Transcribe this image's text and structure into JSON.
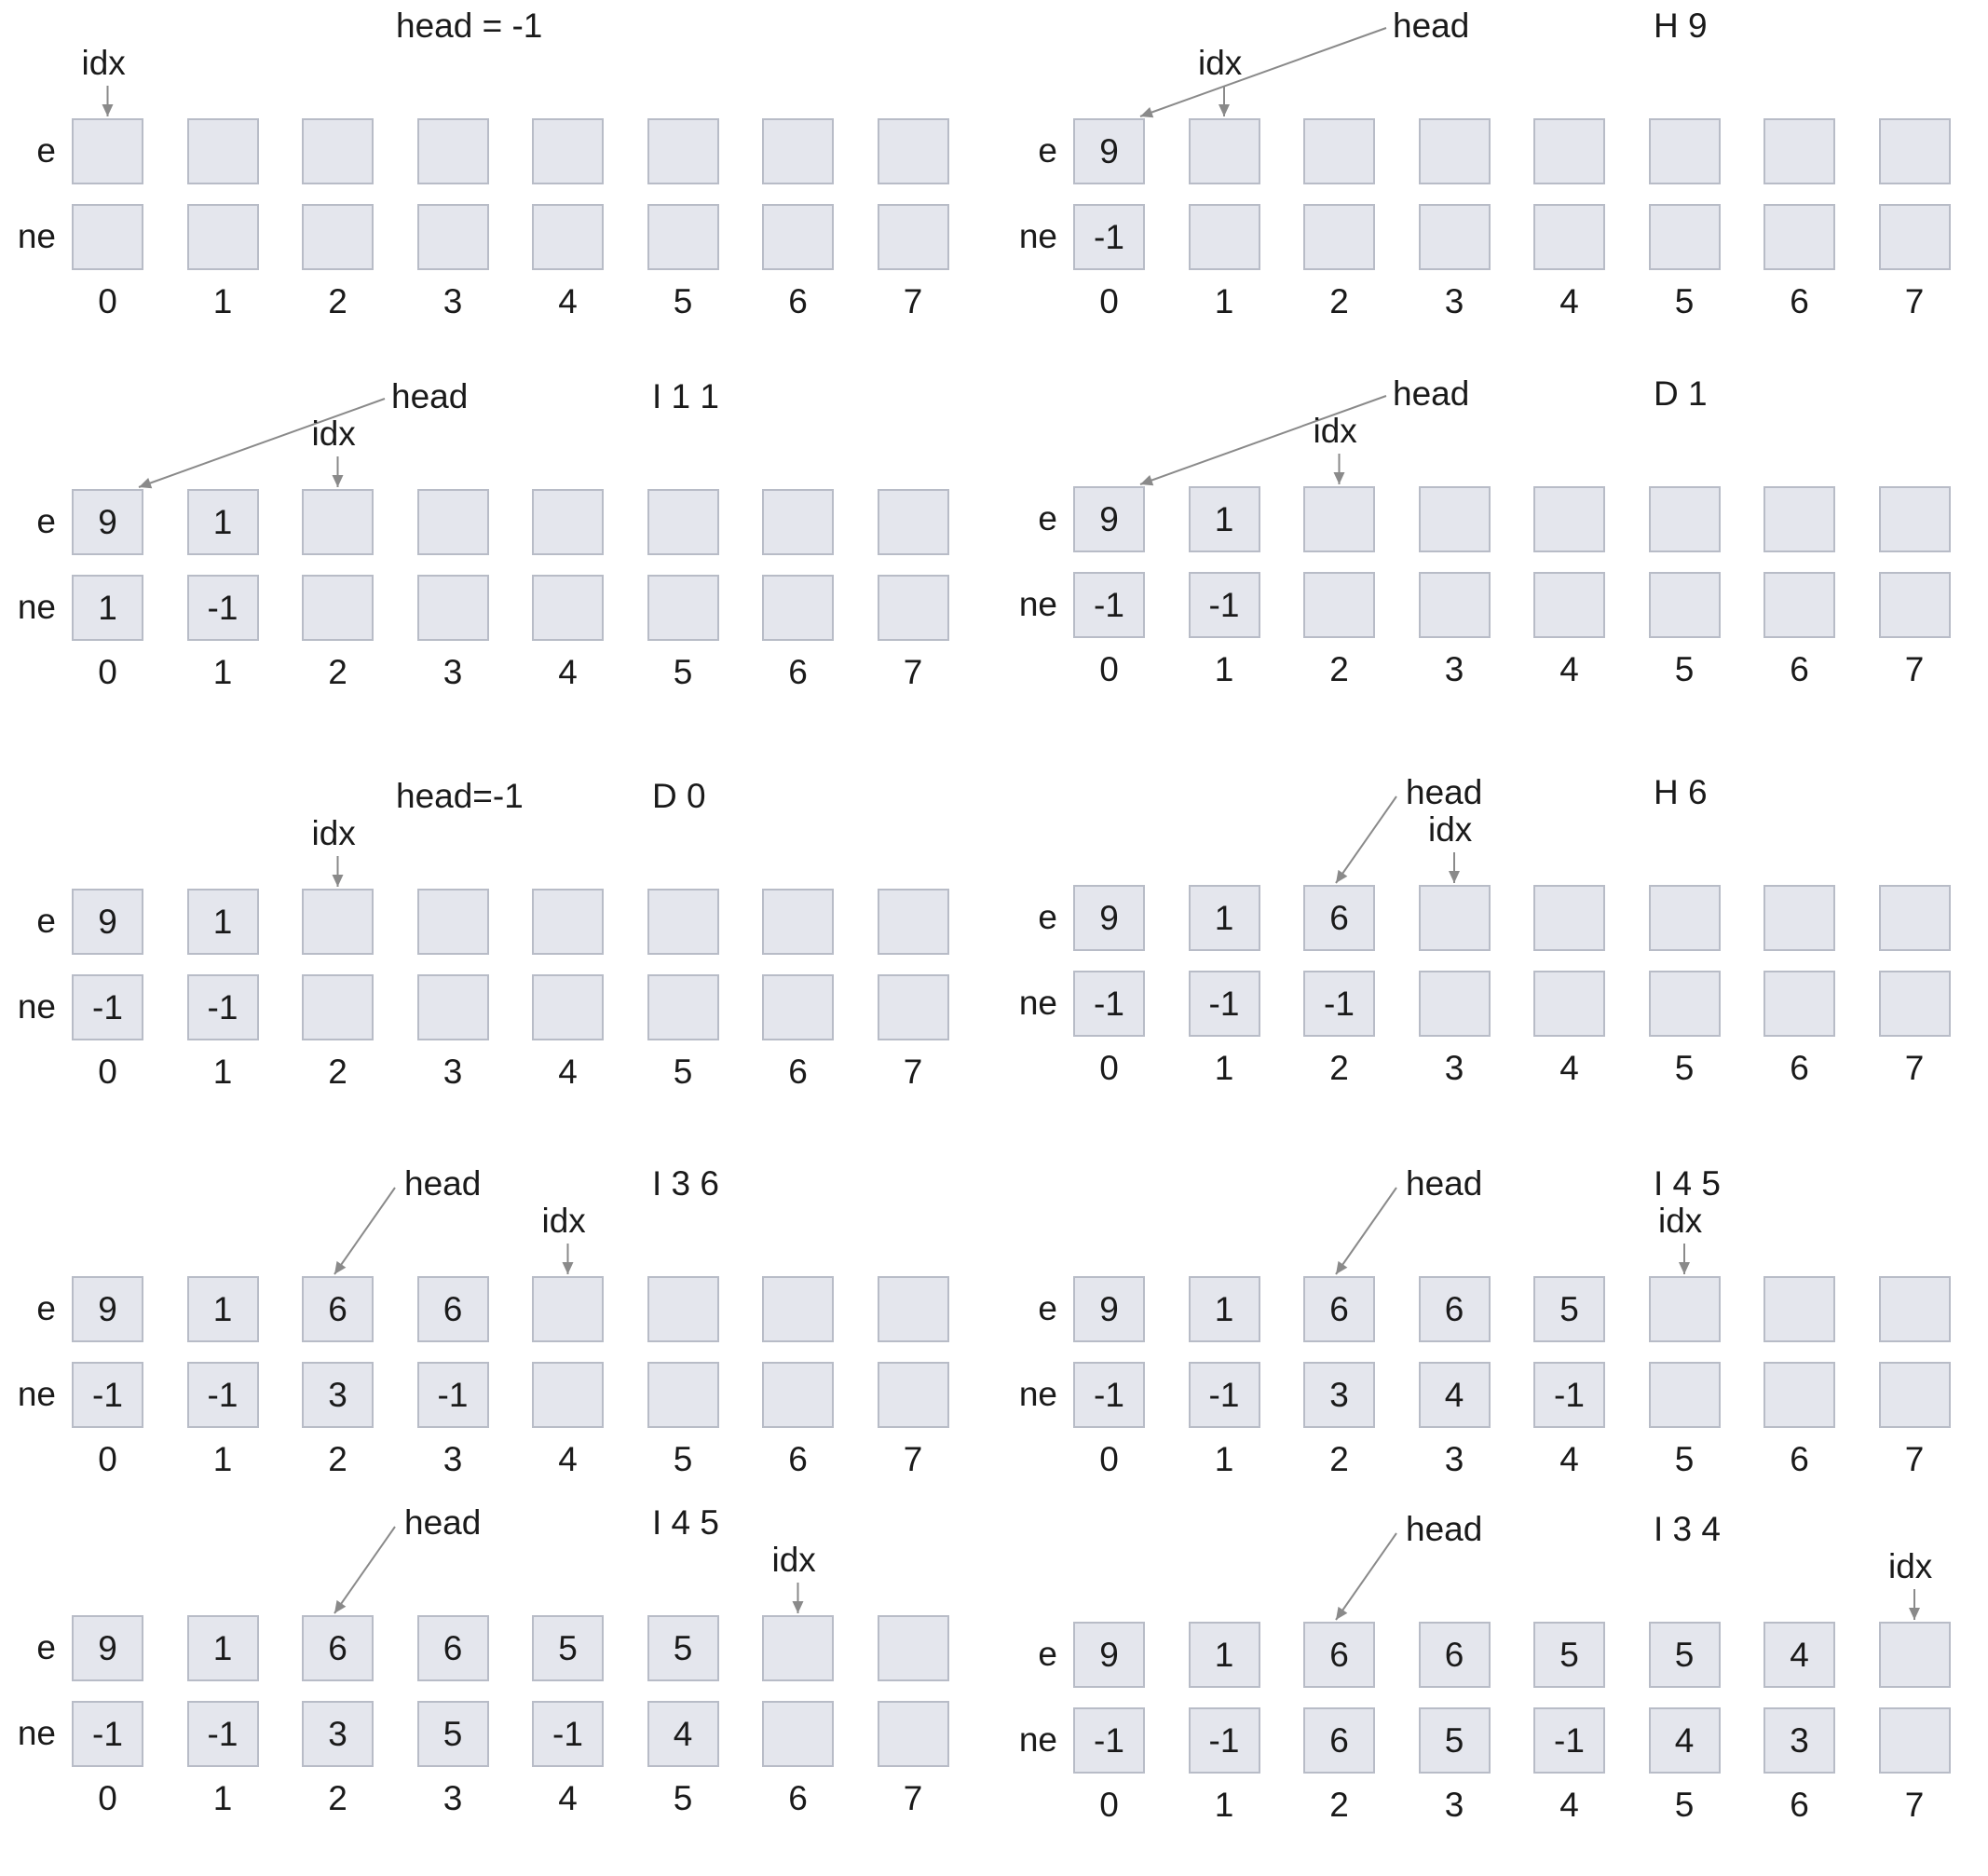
{
  "labels": {
    "e_row": "e",
    "ne_row": "ne",
    "head_pointer": "head",
    "idx_pointer": "idx"
  },
  "panels": [
    {
      "top_text": "head = -1",
      "operation": "",
      "e": [
        "",
        "",
        "",
        "",
        "",
        "",
        "",
        ""
      ],
      "ne": [
        "",
        "",
        "",
        "",
        "",
        "",
        "",
        ""
      ],
      "indices": [
        "0",
        "1",
        "2",
        "3",
        "4",
        "5",
        "6",
        "7"
      ],
      "idx": 0,
      "head": -1
    },
    {
      "top_text": "",
      "operation": "H 9",
      "e": [
        "9",
        "",
        "",
        "",
        "",
        "",
        "",
        ""
      ],
      "ne": [
        "-1",
        "",
        "",
        "",
        "",
        "",
        "",
        ""
      ],
      "indices": [
        "0",
        "1",
        "2",
        "3",
        "4",
        "5",
        "6",
        "7"
      ],
      "idx": 1,
      "head": 0
    },
    {
      "top_text": "",
      "operation": "I 1 1",
      "e": [
        "9",
        "1",
        "",
        "",
        "",
        "",
        "",
        ""
      ],
      "ne": [
        "1",
        "-1",
        "",
        "",
        "",
        "",
        "",
        ""
      ],
      "indices": [
        "0",
        "1",
        "2",
        "3",
        "4",
        "5",
        "6",
        "7"
      ],
      "idx": 2,
      "head": 0
    },
    {
      "top_text": "",
      "operation": "D 1",
      "e": [
        "9",
        "1",
        "",
        "",
        "",
        "",
        "",
        ""
      ],
      "ne": [
        "-1",
        "-1",
        "",
        "",
        "",
        "",
        "",
        ""
      ],
      "indices": [
        "0",
        "1",
        "2",
        "3",
        "4",
        "5",
        "6",
        "7"
      ],
      "idx": 2,
      "head": 0
    },
    {
      "top_text": "head=-1",
      "operation": "D 0",
      "e": [
        "9",
        "1",
        "",
        "",
        "",
        "",
        "",
        ""
      ],
      "ne": [
        "-1",
        "-1",
        "",
        "",
        "",
        "",
        "",
        ""
      ],
      "indices": [
        "0",
        "1",
        "2",
        "3",
        "4",
        "5",
        "6",
        "7"
      ],
      "idx": 2,
      "head": -1
    },
    {
      "top_text": "",
      "operation": "H 6",
      "e": [
        "9",
        "1",
        "6",
        "",
        "",
        "",
        "",
        ""
      ],
      "ne": [
        "-1",
        "-1",
        "-1",
        "",
        "",
        "",
        "",
        ""
      ],
      "indices": [
        "0",
        "1",
        "2",
        "3",
        "4",
        "5",
        "6",
        "7"
      ],
      "idx": 3,
      "head": 2
    },
    {
      "top_text": "",
      "operation": "I 3 6",
      "e": [
        "9",
        "1",
        "6",
        "6",
        "",
        "",
        "",
        ""
      ],
      "ne": [
        "-1",
        "-1",
        "3",
        "-1",
        "",
        "",
        "",
        ""
      ],
      "indices": [
        "0",
        "1",
        "2",
        "3",
        "4",
        "5",
        "6",
        "7"
      ],
      "idx": 4,
      "head": 2
    },
    {
      "top_text": "",
      "operation": "I 4 5",
      "e": [
        "9",
        "1",
        "6",
        "6",
        "5",
        "",
        "",
        ""
      ],
      "ne": [
        "-1",
        "-1",
        "3",
        "4",
        "-1",
        "",
        "",
        ""
      ],
      "indices": [
        "0",
        "1",
        "2",
        "3",
        "4",
        "5",
        "6",
        "7"
      ],
      "idx": 5,
      "head": 2
    },
    {
      "top_text": "",
      "operation": "I 4 5",
      "e": [
        "9",
        "1",
        "6",
        "6",
        "5",
        "5",
        "",
        ""
      ],
      "ne": [
        "-1",
        "-1",
        "3",
        "5",
        "-1",
        "4",
        "",
        ""
      ],
      "indices": [
        "0",
        "1",
        "2",
        "3",
        "4",
        "5",
        "6",
        "7"
      ],
      "idx": 6,
      "head": 2
    },
    {
      "top_text": "",
      "operation": "I 3 4",
      "e": [
        "9",
        "1",
        "6",
        "6",
        "5",
        "5",
        "4",
        ""
      ],
      "ne": [
        "-1",
        "-1",
        "6",
        "5",
        "-1",
        "4",
        "3",
        ""
      ],
      "indices": [
        "0",
        "1",
        "2",
        "3",
        "4",
        "5",
        "6",
        "7"
      ],
      "idx": 7,
      "head": 2
    }
  ]
}
